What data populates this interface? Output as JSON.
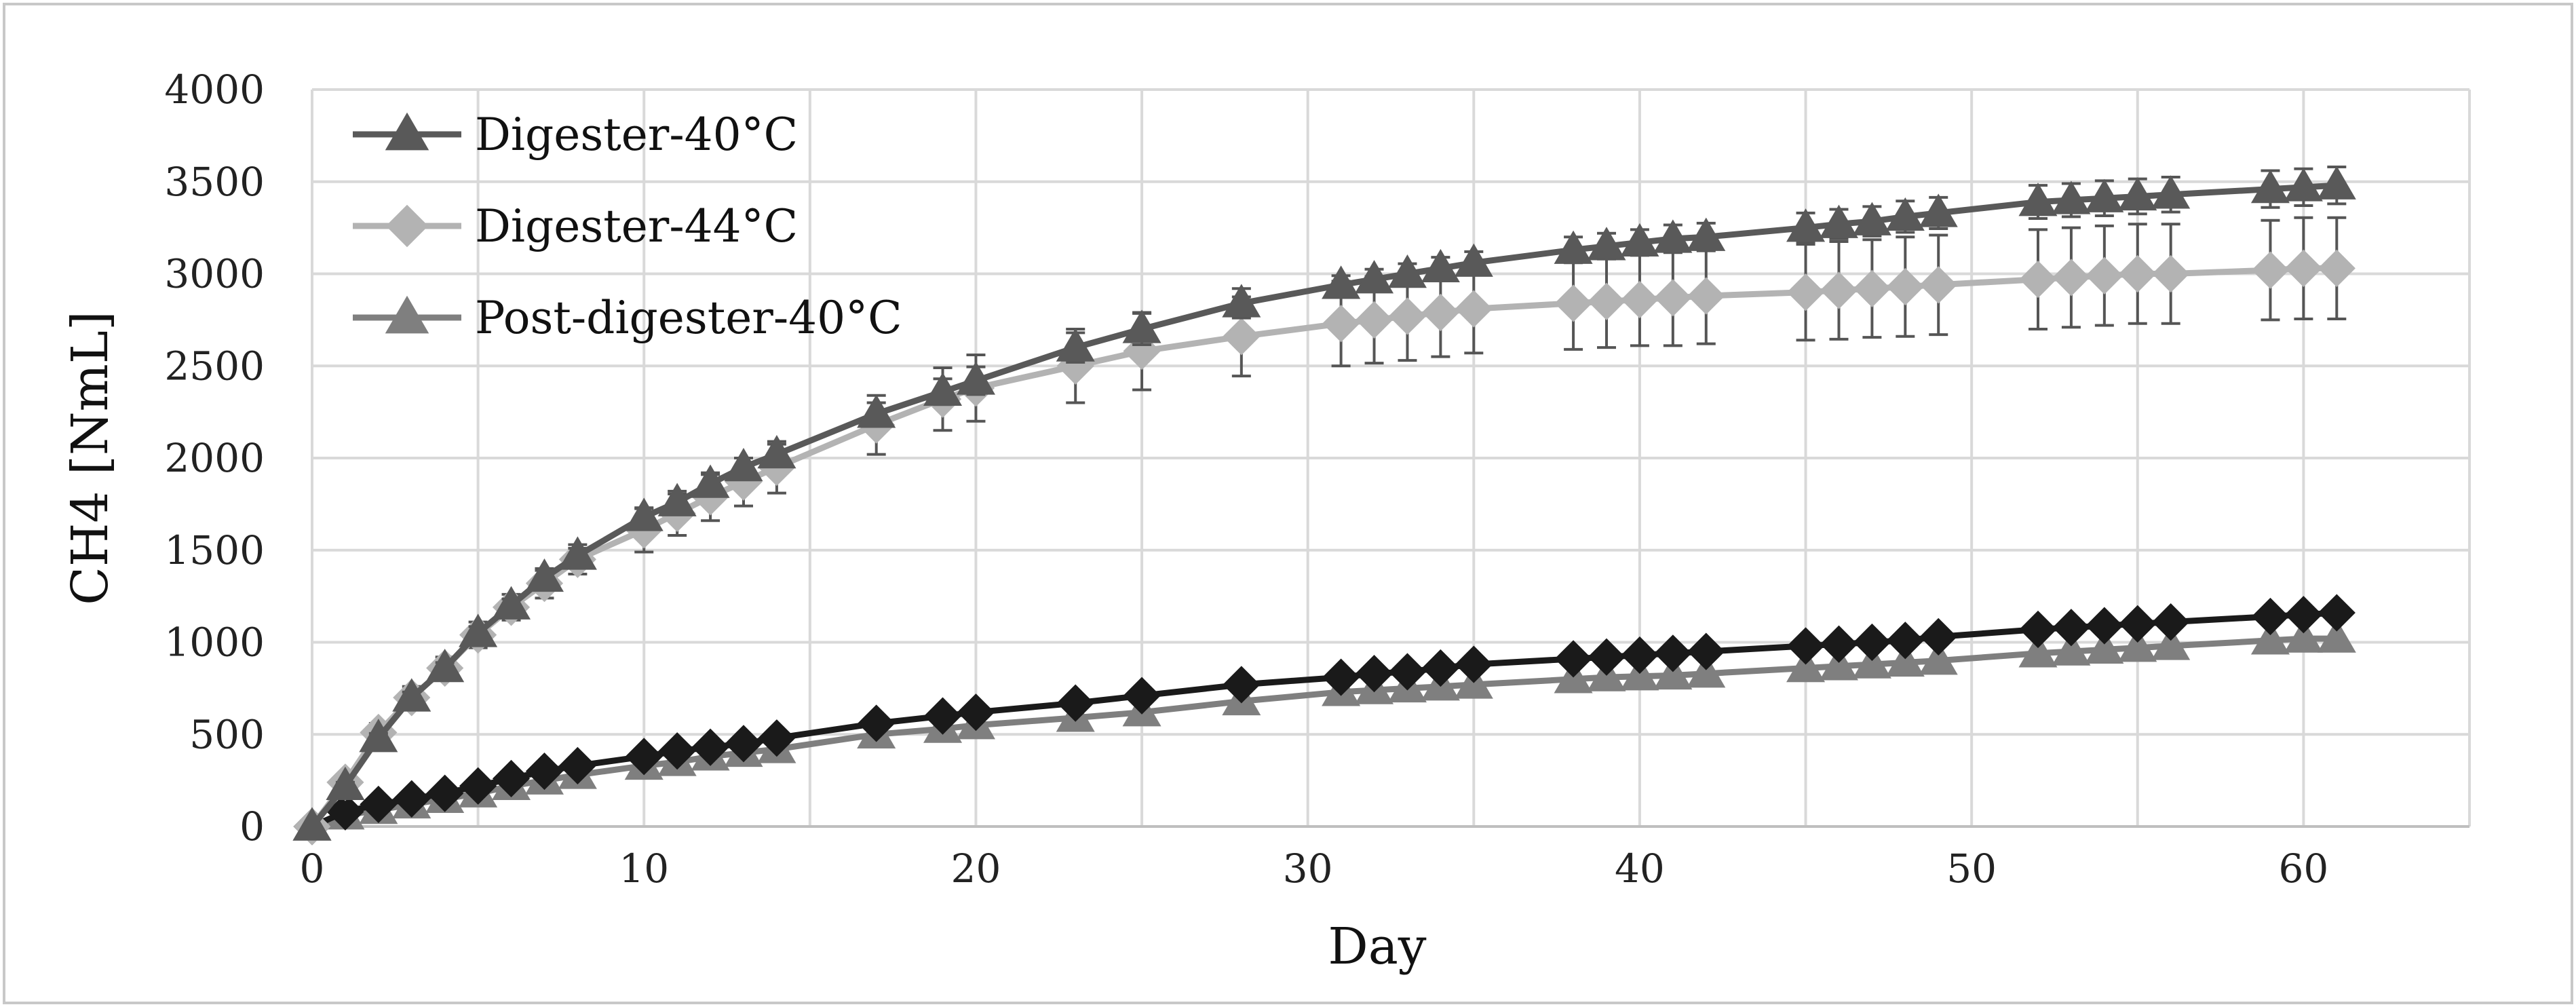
{
  "chart_data": {
    "type": "line",
    "title": "",
    "xlabel": "Day",
    "ylabel": "CH4  [NmL]",
    "xlim": [
      0,
      65
    ],
    "ylim": [
      0,
      4000
    ],
    "xticks": [
      0,
      10,
      20,
      30,
      40,
      50,
      60
    ],
    "yticks": [
      0,
      500,
      1000,
      1500,
      2000,
      2500,
      3000,
      3500,
      4000
    ],
    "x_gridlines": [
      0,
      5,
      10,
      15,
      20,
      25,
      30,
      35,
      40,
      45,
      50,
      55,
      60,
      65
    ],
    "grid": true,
    "legend_position": "top-left",
    "series": [
      {
        "name": "Digester-40°C",
        "marker": "triangle",
        "color": "#595959",
        "x": [
          0,
          1,
          2,
          3,
          4,
          5,
          6,
          7,
          8,
          10,
          11,
          12,
          13,
          14,
          17,
          19,
          20,
          23,
          25,
          28,
          31,
          32,
          33,
          34,
          35,
          38,
          39,
          40,
          41,
          42,
          45,
          46,
          47,
          48,
          49,
          52,
          53,
          54,
          55,
          56,
          59,
          60,
          61
        ],
        "y": [
          0,
          220,
          480,
          700,
          860,
          1050,
          1200,
          1350,
          1470,
          1680,
          1760,
          1860,
          1950,
          2020,
          2240,
          2360,
          2420,
          2600,
          2700,
          2840,
          2940,
          2970,
          3000,
          3030,
          3060,
          3130,
          3150,
          3170,
          3190,
          3200,
          3250,
          3270,
          3285,
          3310,
          3330,
          3390,
          3400,
          3410,
          3420,
          3430,
          3460,
          3470,
          3480
        ],
        "error": [
          0,
          20,
          25,
          30,
          30,
          35,
          35,
          40,
          40,
          45,
          45,
          50,
          50,
          55,
          60,
          70,
          75,
          80,
          85,
          80,
          50,
          55,
          55,
          60,
          60,
          70,
          70,
          70,
          75,
          75,
          80,
          80,
          80,
          85,
          85,
          90,
          90,
          95,
          95,
          95,
          100,
          100,
          100
        ]
      },
      {
        "name": "Digester-44°C",
        "marker": "diamond",
        "color": "#b3b3b3",
        "x": [
          0,
          1,
          2,
          3,
          4,
          5,
          6,
          7,
          8,
          10,
          11,
          12,
          13,
          14,
          17,
          19,
          20,
          23,
          25,
          28,
          31,
          32,
          33,
          34,
          35,
          38,
          39,
          40,
          41,
          42,
          45,
          46,
          47,
          48,
          49,
          52,
          53,
          54,
          55,
          56,
          59,
          60,
          61
        ],
        "y": [
          0,
          240,
          510,
          700,
          860,
          1040,
          1190,
          1320,
          1450,
          1610,
          1700,
          1790,
          1870,
          1950,
          2180,
          2320,
          2380,
          2500,
          2580,
          2660,
          2730,
          2750,
          2770,
          2790,
          2810,
          2840,
          2850,
          2860,
          2870,
          2880,
          2900,
          2910,
          2920,
          2930,
          2940,
          2970,
          2980,
          2990,
          3000,
          3000,
          3020,
          3030,
          3030
        ],
        "error": [
          0,
          40,
          50,
          60,
          60,
          70,
          70,
          80,
          80,
          120,
          120,
          130,
          130,
          140,
          160,
          170,
          180,
          200,
          210,
          215,
          230,
          235,
          240,
          240,
          240,
          250,
          250,
          250,
          260,
          260,
          260,
          265,
          265,
          270,
          270,
          270,
          270,
          270,
          270,
          270,
          270,
          275,
          275
        ]
      },
      {
        "name": "Post-digester-40°C",
        "marker": "triangle",
        "color": "#7f7f7f",
        "x": [
          0,
          1,
          2,
          3,
          4,
          5,
          6,
          7,
          8,
          10,
          11,
          12,
          13,
          14,
          17,
          19,
          20,
          23,
          25,
          28,
          31,
          32,
          33,
          34,
          35,
          38,
          39,
          40,
          41,
          42,
          45,
          46,
          47,
          48,
          49,
          52,
          53,
          54,
          55,
          56,
          59,
          60,
          61
        ],
        "y": [
          0,
          60,
          90,
          120,
          150,
          180,
          220,
          250,
          280,
          330,
          350,
          380,
          400,
          420,
          500,
          530,
          550,
          590,
          620,
          680,
          730,
          740,
          750,
          760,
          770,
          800,
          810,
          815,
          820,
          830,
          860,
          870,
          880,
          890,
          900,
          940,
          950,
          960,
          970,
          980,
          1010,
          1020,
          1020
        ],
        "error": []
      },
      {
        "name": "",
        "marker": "diamond",
        "color": "#1a1a1a",
        "x": [
          0,
          1,
          2,
          3,
          4,
          5,
          6,
          7,
          8,
          10,
          11,
          12,
          13,
          14,
          17,
          19,
          20,
          23,
          25,
          28,
          31,
          32,
          33,
          34,
          35,
          38,
          39,
          40,
          41,
          42,
          45,
          46,
          47,
          48,
          49,
          52,
          53,
          54,
          55,
          56,
          59,
          60,
          61
        ],
        "y": [
          0,
          80,
          120,
          150,
          180,
          220,
          260,
          300,
          330,
          380,
          410,
          430,
          450,
          480,
          560,
          600,
          620,
          670,
          710,
          770,
          810,
          830,
          840,
          860,
          880,
          910,
          920,
          930,
          940,
          950,
          980,
          990,
          1000,
          1010,
          1030,
          1070,
          1080,
          1090,
          1100,
          1110,
          1140,
          1150,
          1160
        ],
        "error": []
      }
    ]
  }
}
